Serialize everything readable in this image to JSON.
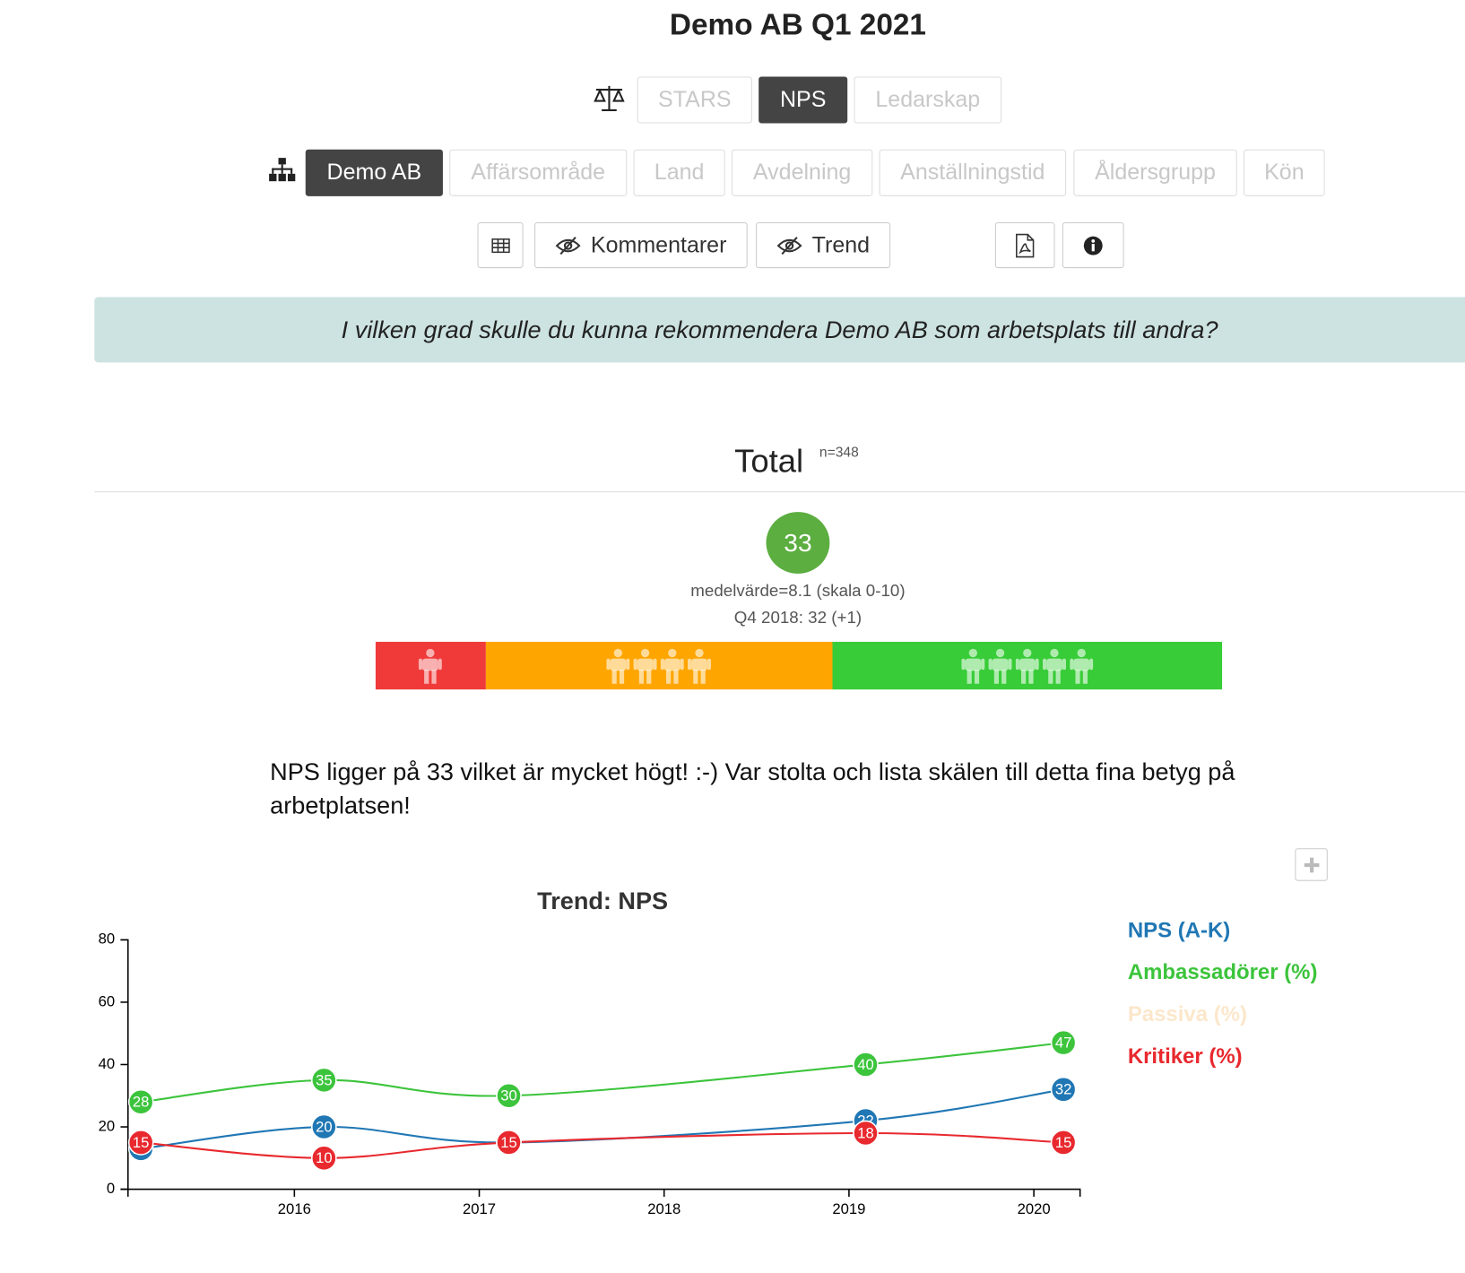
{
  "header": {
    "title": "Demo AB Q1 2021"
  },
  "measures": [
    {
      "label": "STARS",
      "selected": false
    },
    {
      "label": "NPS",
      "selected": true
    },
    {
      "label": "Ledarskap",
      "selected": false
    }
  ],
  "groups": [
    {
      "label": "Demo AB",
      "selected": true
    },
    {
      "label": "Affärsområde",
      "selected": false
    },
    {
      "label": "Land",
      "selected": false
    },
    {
      "label": "Avdelning",
      "selected": false
    },
    {
      "label": "Anställningstid",
      "selected": false
    },
    {
      "label": "Åldersgrupp",
      "selected": false
    },
    {
      "label": "Kön",
      "selected": false
    }
  ],
  "tools": {
    "comments": "Kommentarer",
    "trend": "Trend"
  },
  "question": "I vilken grad skulle du kunna rekommendera Demo AB som arbetsplats till andra?",
  "total": {
    "title": "Total",
    "n": "n=348",
    "score": 33,
    "mean": "medelvärde=8.1 (skala 0-10)",
    "previous": "Q4 2018: 32 (+1)",
    "distribution": [
      {
        "value": 13,
        "color": "#f03a3a"
      },
      {
        "value": 41,
        "color": "#ffa500"
      },
      {
        "value": 46,
        "color": "#38cc38"
      }
    ]
  },
  "comment": "NPS ligger på 33 vilket är mycket högt! :-) Var stolta och lista skälen till detta fina betyg på arbetplatsen!",
  "chart_data": {
    "type": "line",
    "title": "Trend: NPS",
    "x": [
      2015.17,
      2016.16,
      2017.16,
      2019.09,
      2020.16
    ],
    "xlim": [
      2015.1,
      2020.25
    ],
    "xticks": [
      2016,
      2017,
      2018,
      2019,
      2020
    ],
    "ylim": [
      0,
      80
    ],
    "yticks": [
      0,
      20,
      40,
      60,
      80
    ],
    "series": [
      {
        "name": "NPS (A-K)",
        "color": "#2077b4",
        "visible": true,
        "values": [
          13,
          20,
          15,
          22,
          32
        ]
      },
      {
        "name": "Ambassadörer (%)",
        "color": "#3cc43c",
        "visible": true,
        "values": [
          28,
          35,
          30,
          40,
          47
        ]
      },
      {
        "name": "Passiva (%)",
        "color": "#fbd7a8",
        "visible": false
      },
      {
        "name": "Kritiker (%)",
        "color": "#e8292e",
        "visible": true,
        "values": [
          15,
          10,
          15,
          18,
          15
        ]
      }
    ]
  }
}
